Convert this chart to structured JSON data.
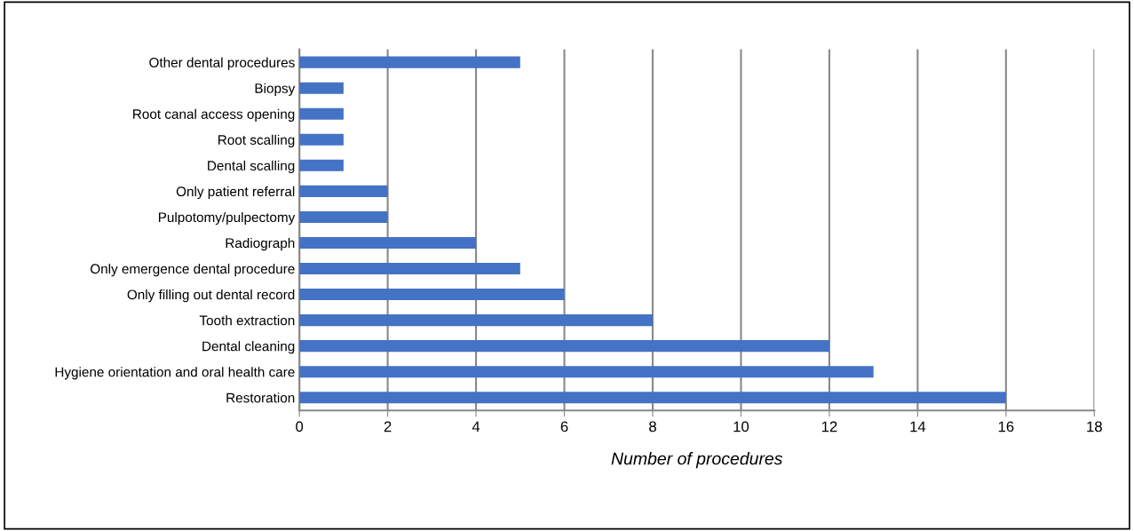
{
  "chart_data": {
    "type": "bar",
    "orientation": "horizontal",
    "xlabel": "Number of procedures",
    "categories": [
      "Other dental procedures",
      "Biopsy",
      "Root canal access opening",
      "Root scalling",
      "Dental scalling",
      "Only patient referral",
      "Pulpotomy/pulpectomy",
      "Radiograph",
      "Only emergence dental procedure",
      "Only filling out dental record",
      "Tooth extraction",
      "Dental cleaning",
      "Hygiene orientation and oral health care",
      "Restoration"
    ],
    "values": [
      5,
      1,
      1,
      1,
      1,
      2,
      2,
      4,
      5,
      6,
      8,
      12,
      13,
      16
    ],
    "color": "#4472c4",
    "xlim": [
      0,
      18
    ],
    "xticks": [
      0,
      2,
      4,
      6,
      8,
      10,
      12,
      14,
      16,
      18
    ],
    "grid": "x",
    "legend": false
  }
}
